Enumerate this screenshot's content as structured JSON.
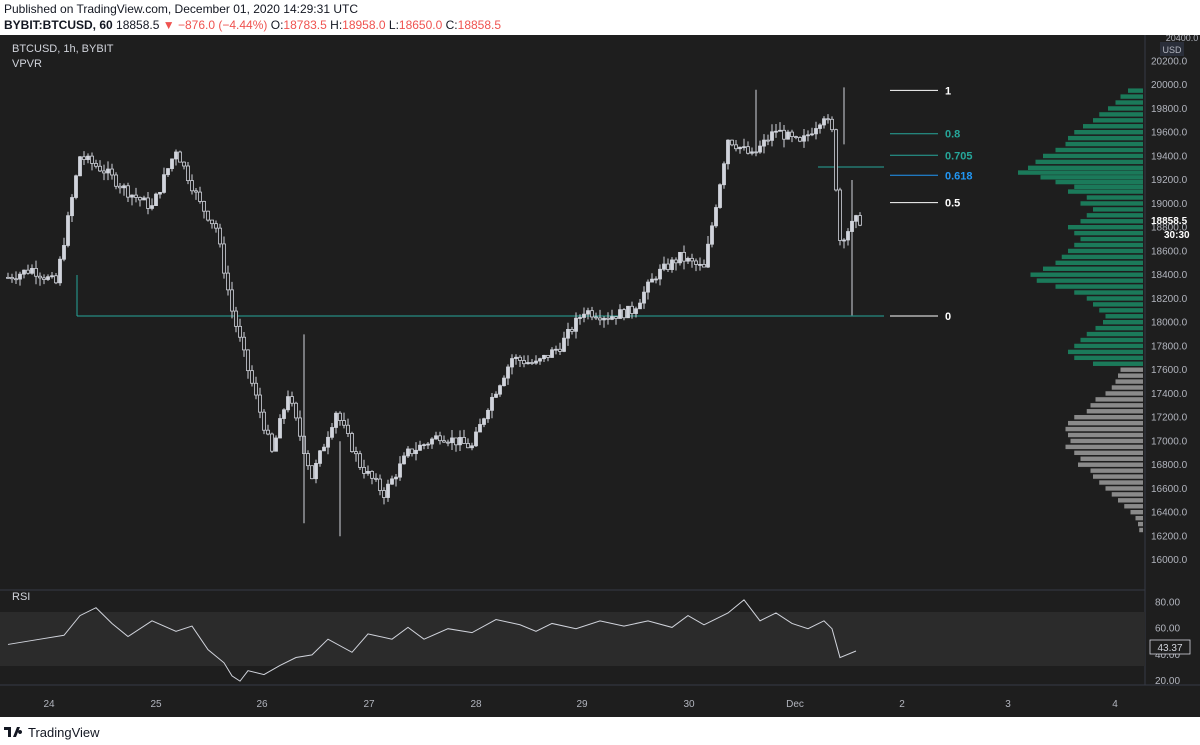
{
  "header": {
    "published": "Published on TradingView.com, December 01, 2020 14:29:31 UTC",
    "symbol": "BYBIT:BTCUSD, 60",
    "last": "18858.5",
    "change": "−876.0 (−4.44%)",
    "o_label": "O:",
    "o_value": "18783.5",
    "h_label": "H:",
    "h_value": "18958.0",
    "l_label": "L:",
    "l_value": "18650.0",
    "c_label": "C:",
    "c_value": "18858.5"
  },
  "chart": {
    "legend_title": "BTCUSD, 1h, BYBIT",
    "indicator": "VPVR",
    "rsi_label": "RSI",
    "price_axis_top": "20400.0",
    "currency": "USD",
    "last_price": "18858.5",
    "countdown": "30:30",
    "rsi_value": "43.37",
    "colors": {
      "background": "#1e1e1e",
      "candle": "#d1d4dc",
      "fib_teal": "#26a69a",
      "fib_blue": "#2196f3",
      "fib_white": "#ffffff",
      "vp_green": "#1b7a5a",
      "vp_gray": "#8a8a8a"
    }
  },
  "chart_data": {
    "type": "candlestick",
    "price_ticks": [
      16000,
      16200,
      16400,
      16600,
      16800,
      17000,
      17200,
      17400,
      17600,
      17800,
      18000,
      18200,
      18400,
      18600,
      18800,
      19000,
      19200,
      19400,
      19600,
      19800,
      20000,
      20200
    ],
    "price_tick_labels": [
      "16000.0",
      "16200.0",
      "16400.0",
      "16600.0",
      "16800.0",
      "17000.0",
      "17200.0",
      "17400.0",
      "17600.0",
      "17800.0",
      "18000.0",
      "18200.0",
      "18400.0",
      "18600.0",
      "18800.0",
      "19000.0",
      "19200.0",
      "19400.0",
      "19600.0",
      "19800.0",
      "20000.0",
      "20200.0"
    ],
    "x_labels": [
      "24",
      "25",
      "26",
      "27",
      "28",
      "29",
      "30",
      "Dec",
      "2",
      "3",
      "4"
    ],
    "ylim": [
      15850,
      20420
    ],
    "fib_levels": [
      {
        "label": "1",
        "price": 19955,
        "color": "#ffffff"
      },
      {
        "label": "0.8",
        "price": 19590,
        "color": "#26a69a"
      },
      {
        "label": "0.705",
        "price": 19408,
        "color": "#26a69a"
      },
      {
        "label": "0.618",
        "price": 19240,
        "color": "#2196f3"
      },
      {
        "label": "0.5",
        "price": 19010,
        "color": "#ffffff"
      },
      {
        "label": "0",
        "price": 18055,
        "color": "#ffffff"
      }
    ],
    "horizontal_lines": [
      {
        "price": 18055,
        "color": "#26a69a"
      },
      {
        "price": 19310,
        "color": "#26a69a"
      }
    ],
    "price_path": [
      [
        0,
        18380
      ],
      [
        6,
        18450
      ],
      [
        12,
        18330
      ],
      [
        18,
        19400
      ],
      [
        24,
        19280
      ],
      [
        30,
        19100
      ],
      [
        36,
        18970
      ],
      [
        42,
        19460
      ],
      [
        48,
        19000
      ],
      [
        52,
        18800
      ],
      [
        56,
        18100
      ],
      [
        60,
        17600
      ],
      [
        66,
        16900
      ],
      [
        70,
        17400
      ],
      [
        76,
        16700
      ],
      [
        82,
        17250
      ],
      [
        88,
        16800
      ],
      [
        94,
        16560
      ],
      [
        100,
        16900
      ],
      [
        108,
        17050
      ],
      [
        116,
        16950
      ],
      [
        120,
        17300
      ],
      [
        126,
        17700
      ],
      [
        132,
        17650
      ],
      [
        138,
        17800
      ],
      [
        144,
        18100
      ],
      [
        150,
        18050
      ],
      [
        156,
        18100
      ],
      [
        162,
        18400
      ],
      [
        168,
        18550
      ],
      [
        174,
        18450
      ],
      [
        180,
        19550
      ],
      [
        186,
        19400
      ],
      [
        192,
        19620
      ],
      [
        198,
        19500
      ],
      [
        204,
        19750
      ],
      [
        206,
        19600
      ],
      [
        208,
        18700
      ],
      [
        212,
        18858
      ]
    ],
    "candle_x_range": [
      0,
      214
    ],
    "volume_profile": [
      {
        "price": 19950,
        "vol": 0.12,
        "c": "g"
      },
      {
        "price": 19900,
        "vol": 0.18,
        "c": "g"
      },
      {
        "price": 19850,
        "vol": 0.22,
        "c": "g"
      },
      {
        "price": 19800,
        "vol": 0.28,
        "c": "g"
      },
      {
        "price": 19750,
        "vol": 0.35,
        "c": "g"
      },
      {
        "price": 19700,
        "vol": 0.4,
        "c": "g"
      },
      {
        "price": 19650,
        "vol": 0.48,
        "c": "g"
      },
      {
        "price": 19600,
        "vol": 0.55,
        "c": "g"
      },
      {
        "price": 19550,
        "vol": 0.6,
        "c": "g"
      },
      {
        "price": 19500,
        "vol": 0.62,
        "c": "g"
      },
      {
        "price": 19450,
        "vol": 0.7,
        "c": "g"
      },
      {
        "price": 19400,
        "vol": 0.8,
        "c": "g"
      },
      {
        "price": 19350,
        "vol": 0.86,
        "c": "g"
      },
      {
        "price": 19300,
        "vol": 0.92,
        "c": "g"
      },
      {
        "price": 19260,
        "vol": 1.0,
        "c": "g"
      },
      {
        "price": 19220,
        "vol": 0.82,
        "c": "g"
      },
      {
        "price": 19180,
        "vol": 0.7,
        "c": "g"
      },
      {
        "price": 19140,
        "vol": 0.55,
        "c": "g"
      },
      {
        "price": 19100,
        "vol": 0.6,
        "c": "g"
      },
      {
        "price": 19050,
        "vol": 0.45,
        "c": "g"
      },
      {
        "price": 19000,
        "vol": 0.5,
        "c": "g"
      },
      {
        "price": 18950,
        "vol": 0.4,
        "c": "g"
      },
      {
        "price": 18900,
        "vol": 0.45,
        "c": "g"
      },
      {
        "price": 18850,
        "vol": 0.5,
        "c": "g"
      },
      {
        "price": 18800,
        "vol": 0.6,
        "c": "g"
      },
      {
        "price": 18750,
        "vol": 0.55,
        "c": "g"
      },
      {
        "price": 18700,
        "vol": 0.5,
        "c": "g"
      },
      {
        "price": 18650,
        "vol": 0.55,
        "c": "g"
      },
      {
        "price": 18600,
        "vol": 0.6,
        "c": "g"
      },
      {
        "price": 18550,
        "vol": 0.65,
        "c": "g"
      },
      {
        "price": 18500,
        "vol": 0.7,
        "c": "g"
      },
      {
        "price": 18450,
        "vol": 0.8,
        "c": "g"
      },
      {
        "price": 18400,
        "vol": 0.9,
        "c": "g"
      },
      {
        "price": 18350,
        "vol": 0.85,
        "c": "g"
      },
      {
        "price": 18300,
        "vol": 0.7,
        "c": "g"
      },
      {
        "price": 18250,
        "vol": 0.55,
        "c": "g"
      },
      {
        "price": 18200,
        "vol": 0.45,
        "c": "g"
      },
      {
        "price": 18150,
        "vol": 0.4,
        "c": "g"
      },
      {
        "price": 18100,
        "vol": 0.35,
        "c": "g"
      },
      {
        "price": 18050,
        "vol": 0.3,
        "c": "g"
      },
      {
        "price": 18000,
        "vol": 0.32,
        "c": "g"
      },
      {
        "price": 17950,
        "vol": 0.38,
        "c": "g"
      },
      {
        "price": 17900,
        "vol": 0.45,
        "c": "g"
      },
      {
        "price": 17850,
        "vol": 0.5,
        "c": "g"
      },
      {
        "price": 17800,
        "vol": 0.55,
        "c": "g"
      },
      {
        "price": 17750,
        "vol": 0.6,
        "c": "g"
      },
      {
        "price": 17700,
        "vol": 0.55,
        "c": "g"
      },
      {
        "price": 17650,
        "vol": 0.4,
        "c": "g"
      },
      {
        "price": 17600,
        "vol": 0.18,
        "c": "r"
      },
      {
        "price": 17550,
        "vol": 0.2,
        "c": "r"
      },
      {
        "price": 17500,
        "vol": 0.22,
        "c": "r"
      },
      {
        "price": 17450,
        "vol": 0.25,
        "c": "r"
      },
      {
        "price": 17400,
        "vol": 0.3,
        "c": "r"
      },
      {
        "price": 17350,
        "vol": 0.38,
        "c": "r"
      },
      {
        "price": 17300,
        "vol": 0.42,
        "c": "r"
      },
      {
        "price": 17250,
        "vol": 0.45,
        "c": "r"
      },
      {
        "price": 17200,
        "vol": 0.55,
        "c": "r"
      },
      {
        "price": 17150,
        "vol": 0.6,
        "c": "r"
      },
      {
        "price": 17100,
        "vol": 0.62,
        "c": "r"
      },
      {
        "price": 17050,
        "vol": 0.6,
        "c": "r"
      },
      {
        "price": 17000,
        "vol": 0.58,
        "c": "r"
      },
      {
        "price": 16950,
        "vol": 0.62,
        "c": "r"
      },
      {
        "price": 16900,
        "vol": 0.55,
        "c": "r"
      },
      {
        "price": 16850,
        "vol": 0.5,
        "c": "r"
      },
      {
        "price": 16800,
        "vol": 0.52,
        "c": "r"
      },
      {
        "price": 16750,
        "vol": 0.42,
        "c": "r"
      },
      {
        "price": 16700,
        "vol": 0.4,
        "c": "r"
      },
      {
        "price": 16650,
        "vol": 0.35,
        "c": "r"
      },
      {
        "price": 16600,
        "vol": 0.3,
        "c": "r"
      },
      {
        "price": 16550,
        "vol": 0.25,
        "c": "r"
      },
      {
        "price": 16500,
        "vol": 0.2,
        "c": "r"
      },
      {
        "price": 16450,
        "vol": 0.15,
        "c": "r"
      },
      {
        "price": 16400,
        "vol": 0.1,
        "c": "r"
      },
      {
        "price": 16350,
        "vol": 0.06,
        "c": "r"
      },
      {
        "price": 16300,
        "vol": 0.04,
        "c": "r"
      },
      {
        "price": 16250,
        "vol": 0.03,
        "c": "r"
      }
    ],
    "rsi": {
      "ticks": [
        20,
        40,
        60,
        80
      ],
      "tick_labels": [
        "20.00",
        "40.00",
        "60.00",
        "80.00"
      ],
      "band": [
        30,
        70
      ],
      "ylim": [
        14,
        88
      ],
      "values": [
        [
          0,
          48
        ],
        [
          8,
          52
        ],
        [
          14,
          55
        ],
        [
          18,
          70
        ],
        [
          22,
          76
        ],
        [
          26,
          64
        ],
        [
          30,
          54
        ],
        [
          36,
          66
        ],
        [
          42,
          58
        ],
        [
          46,
          62
        ],
        [
          50,
          44
        ],
        [
          54,
          34
        ],
        [
          56,
          24
        ],
        [
          58,
          20
        ],
        [
          60,
          28
        ],
        [
          64,
          25
        ],
        [
          68,
          32
        ],
        [
          72,
          38
        ],
        [
          76,
          40
        ],
        [
          80,
          52
        ],
        [
          86,
          42
        ],
        [
          90,
          56
        ],
        [
          96,
          52
        ],
        [
          100,
          61
        ],
        [
          104,
          52
        ],
        [
          110,
          60
        ],
        [
          116,
          57
        ],
        [
          122,
          67
        ],
        [
          128,
          63
        ],
        [
          132,
          58
        ],
        [
          136,
          64
        ],
        [
          142,
          60
        ],
        [
          148,
          66
        ],
        [
          154,
          62
        ],
        [
          160,
          66
        ],
        [
          166,
          61
        ],
        [
          170,
          70
        ],
        [
          174,
          63
        ],
        [
          180,
          72
        ],
        [
          184,
          82
        ],
        [
          188,
          66
        ],
        [
          192,
          72
        ],
        [
          196,
          64
        ],
        [
          200,
          60
        ],
        [
          204,
          66
        ],
        [
          206,
          60
        ],
        [
          208,
          38
        ],
        [
          212,
          43
        ]
      ]
    }
  }
}
